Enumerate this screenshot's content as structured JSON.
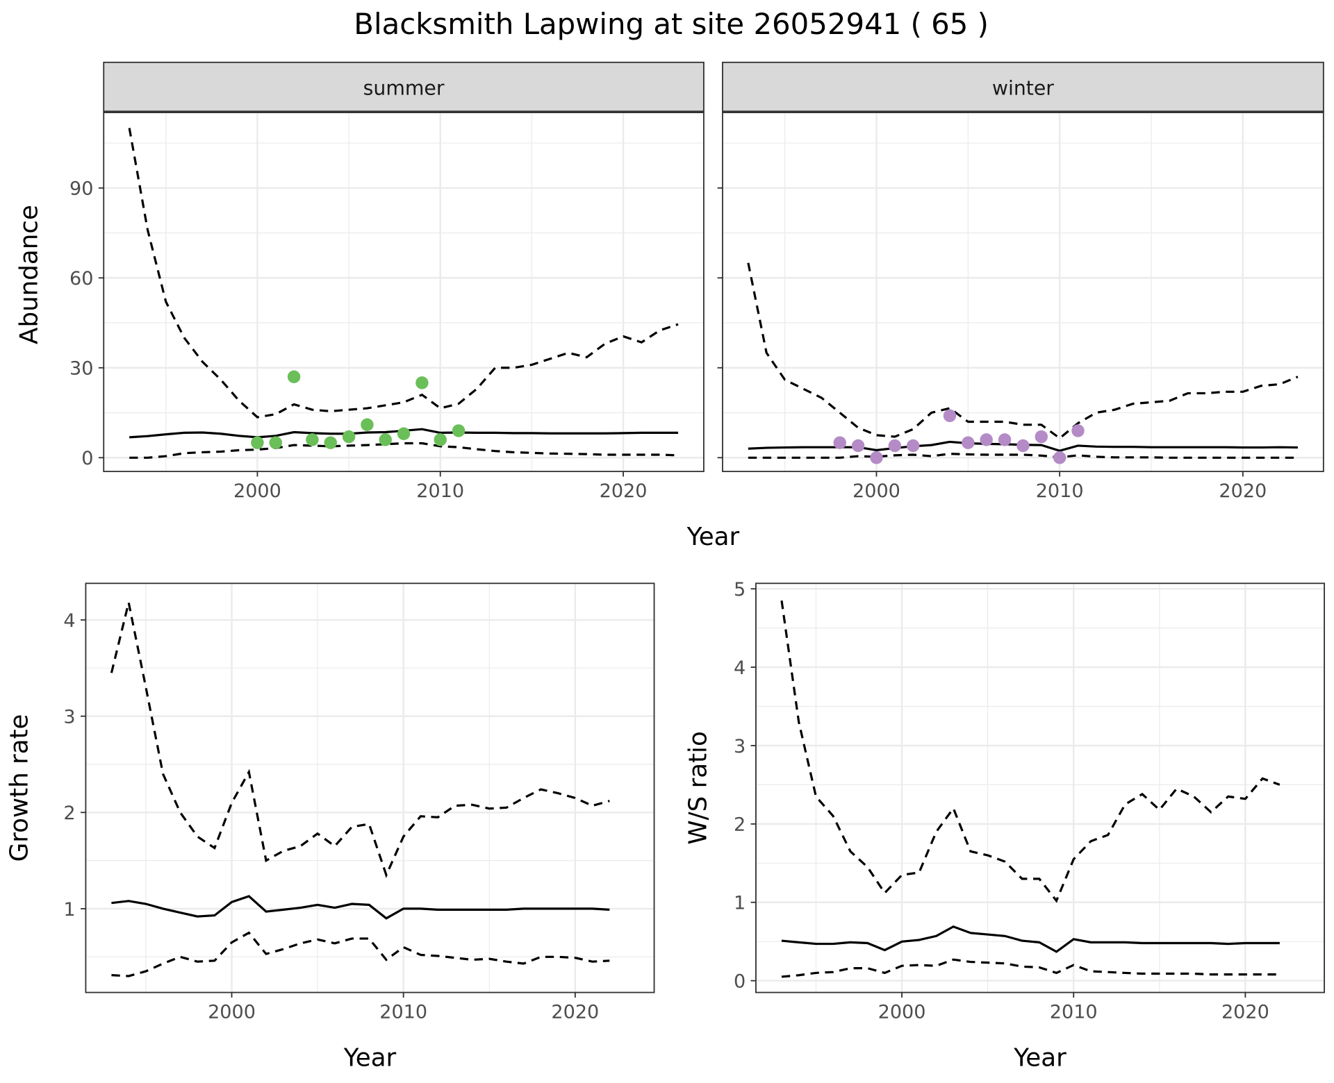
{
  "title": "Blacksmith Lapwing at site 26052941 ( 65 )",
  "chart_data": [
    {
      "type": "line",
      "facet": "summer",
      "ylabel": "Abundance",
      "xlabel": "Year",
      "xlim": [
        1991.6,
        2024.4
      ],
      "ylim": [
        -4.6,
        115.4
      ],
      "x_ticks": [
        2000,
        2010,
        2020
      ],
      "y_ticks": [
        0,
        30,
        60,
        90
      ],
      "grid": true,
      "x": [
        1993,
        1994,
        1995,
        1996,
        1997,
        1998,
        1999,
        2000,
        2001,
        2002,
        2003,
        2004,
        2005,
        2006,
        2007,
        2008,
        2009,
        2010,
        2011,
        2012,
        2013,
        2014,
        2015,
        2016,
        2017,
        2018,
        2019,
        2020,
        2021,
        2022,
        2023
      ],
      "series": [
        {
          "style": "solid",
          "values": [
            6.8,
            7.2,
            7.8,
            8.3,
            8.4,
            8.0,
            7.3,
            6.8,
            7.3,
            8.5,
            8.2,
            8.0,
            8.0,
            8.4,
            8.5,
            9.0,
            9.5,
            8.3,
            8.4,
            8.3,
            8.3,
            8.2,
            8.2,
            8.1,
            8.1,
            8.1,
            8.1,
            8.2,
            8.3,
            8.3,
            8.3
          ]
        },
        {
          "style": "dashed",
          "values": [
            110,
            76,
            52,
            40,
            32,
            26,
            19,
            13.5,
            14.5,
            17.8,
            16,
            15.5,
            16,
            16.5,
            17.5,
            18.5,
            21,
            16.5,
            18,
            23,
            30,
            30,
            31,
            33,
            35,
            33.5,
            38,
            40.5,
            38.5,
            42.5,
            44.5
          ]
        },
        {
          "style": "dashed",
          "values": [
            0,
            0,
            0.5,
            1.5,
            1.8,
            2,
            2.5,
            2.7,
            3.2,
            4.2,
            4.0,
            3.8,
            4,
            4.2,
            4.5,
            4.8,
            4.8,
            3.8,
            3.5,
            2.8,
            2.2,
            1.8,
            1.6,
            1.4,
            1.3,
            1.2,
            1.0,
            1.0,
            1.0,
            1.0,
            0.8
          ]
        }
      ],
      "points": {
        "color": "#6abf59",
        "x": [
          2000,
          2001,
          2002,
          2003,
          2004,
          2005,
          2006,
          2007,
          2008,
          2009,
          2010,
          2011
        ],
        "y": [
          5,
          5,
          27,
          6,
          5,
          7,
          11,
          6,
          8,
          25,
          6,
          9
        ]
      }
    },
    {
      "type": "line",
      "facet": "winter",
      "xlabel": "Year",
      "xlim": [
        1991.6,
        2024.4
      ],
      "ylim": [
        -4.6,
        115.4
      ],
      "x_ticks": [
        2000,
        2010,
        2020
      ],
      "y_ticks": [
        0,
        30,
        60,
        90
      ],
      "grid": true,
      "x": [
        1993,
        1994,
        1995,
        1996,
        1997,
        1998,
        1999,
        2000,
        2001,
        2002,
        2003,
        2004,
        2005,
        2006,
        2007,
        2008,
        2009,
        2010,
        2011,
        2012,
        2013,
        2014,
        2015,
        2016,
        2017,
        2018,
        2019,
        2020,
        2021,
        2022,
        2023
      ],
      "series": [
        {
          "style": "solid",
          "values": [
            3,
            3.3,
            3.4,
            3.5,
            3.5,
            3.5,
            3.5,
            2.5,
            3.2,
            3.8,
            4.2,
            5.3,
            4.8,
            4.6,
            4.5,
            4.3,
            4.2,
            2.3,
            4.0,
            3.7,
            3.6,
            3.6,
            3.5,
            3.5,
            3.5,
            3.5,
            3.5,
            3.4,
            3.4,
            3.5,
            3.4
          ]
        },
        {
          "style": "dashed",
          "values": [
            65,
            35,
            26,
            23,
            20,
            15,
            10,
            7.5,
            7,
            9.5,
            15,
            16.5,
            12,
            12,
            12,
            11,
            11,
            6.5,
            11.5,
            15,
            16,
            18,
            18.5,
            19,
            21.5,
            21.5,
            22,
            22,
            24,
            24.5,
            27
          ]
        },
        {
          "style": "dashed",
          "values": [
            0,
            0,
            0,
            0,
            0,
            0,
            0.5,
            0.3,
            0.8,
            1.0,
            0.5,
            1.3,
            1.1,
            1.0,
            1.0,
            1.0,
            0.7,
            0.1,
            0.8,
            0.3,
            0.1,
            0.1,
            0.1,
            0,
            0,
            0,
            0,
            0,
            0,
            0,
            0
          ]
        }
      ],
      "points": {
        "color": "#b48bc6",
        "x": [
          1998,
          1999,
          2000,
          2001,
          2002,
          2004,
          2005,
          2006,
          2007,
          2008,
          2009,
          2010,
          2011
        ],
        "y": [
          5,
          4,
          0,
          4,
          4,
          14,
          5,
          6,
          6,
          4,
          7,
          0,
          9
        ]
      }
    },
    {
      "type": "line",
      "ylabel": "Growth rate",
      "xlabel": "Year",
      "xlim": [
        1991.5,
        2024.6
      ],
      "ylim": [
        0.13,
        4.38
      ],
      "x_ticks": [
        2000,
        2010,
        2020
      ],
      "y_ticks": [
        1,
        2,
        3,
        4
      ],
      "grid": true,
      "x": [
        1993,
        1994,
        1995,
        1996,
        1997,
        1998,
        1999,
        2000,
        2001,
        2002,
        2003,
        2004,
        2005,
        2006,
        2007,
        2008,
        2009,
        2010,
        2011,
        2012,
        2013,
        2014,
        2015,
        2016,
        2017,
        2018,
        2019,
        2020,
        2021,
        2022
      ],
      "series": [
        {
          "style": "solid",
          "values": [
            1.06,
            1.08,
            1.05,
            1.0,
            0.96,
            0.92,
            0.93,
            1.07,
            1.13,
            0.97,
            0.99,
            1.01,
            1.04,
            1.01,
            1.05,
            1.04,
            0.9,
            1.0,
            1.0,
            0.99,
            0.99,
            0.99,
            0.99,
            0.99,
            1.0,
            1.0,
            1.0,
            1.0,
            1.0,
            0.99
          ]
        },
        {
          "style": "dashed",
          "values": [
            3.45,
            4.18,
            3.3,
            2.4,
            2.0,
            1.75,
            1.63,
            2.1,
            2.42,
            1.5,
            1.6,
            1.65,
            1.78,
            1.65,
            1.85,
            1.88,
            1.35,
            1.75,
            1.96,
            1.95,
            2.07,
            2.08,
            2.04,
            2.05,
            2.15,
            2.24,
            2.2,
            2.15,
            2.07,
            2.12
          ]
        },
        {
          "style": "dashed",
          "values": [
            0.31,
            0.3,
            0.35,
            0.43,
            0.5,
            0.45,
            0.46,
            0.65,
            0.75,
            0.53,
            0.58,
            0.64,
            0.68,
            0.64,
            0.69,
            0.69,
            0.47,
            0.6,
            0.52,
            0.51,
            0.49,
            0.47,
            0.48,
            0.45,
            0.43,
            0.5,
            0.5,
            0.49,
            0.45,
            0.46
          ]
        }
      ]
    },
    {
      "type": "line",
      "ylabel": "W/S ratio",
      "xlabel": "Year",
      "xlim": [
        1991.5,
        2024.6
      ],
      "ylim": [
        -0.15,
        5.07
      ],
      "x_ticks": [
        2000,
        2010,
        2020
      ],
      "y_ticks": [
        0,
        1,
        2,
        3,
        4,
        5
      ],
      "grid": true,
      "x": [
        1993,
        1994,
        1995,
        1996,
        1997,
        1998,
        1999,
        2000,
        2001,
        2002,
        2003,
        2004,
        2005,
        2006,
        2007,
        2008,
        2009,
        2010,
        2011,
        2012,
        2013,
        2014,
        2015,
        2016,
        2017,
        2018,
        2019,
        2020,
        2021,
        2022
      ],
      "series": [
        {
          "style": "solid",
          "values": [
            0.51,
            0.49,
            0.47,
            0.47,
            0.49,
            0.48,
            0.39,
            0.5,
            0.52,
            0.57,
            0.69,
            0.61,
            0.59,
            0.57,
            0.51,
            0.49,
            0.37,
            0.53,
            0.49,
            0.49,
            0.49,
            0.48,
            0.48,
            0.48,
            0.48,
            0.48,
            0.47,
            0.48,
            0.48,
            0.48
          ]
        },
        {
          "style": "dashed",
          "values": [
            4.85,
            3.3,
            2.35,
            2.1,
            1.65,
            1.45,
            1.12,
            1.35,
            1.38,
            1.9,
            2.2,
            1.65,
            1.6,
            1.52,
            1.3,
            1.3,
            1.02,
            1.55,
            1.78,
            1.86,
            2.25,
            2.38,
            2.18,
            2.45,
            2.35,
            2.15,
            2.35,
            2.32,
            2.58,
            2.5
          ]
        },
        {
          "style": "dashed",
          "values": [
            0.05,
            0.07,
            0.1,
            0.11,
            0.16,
            0.16,
            0.1,
            0.19,
            0.2,
            0.19,
            0.27,
            0.24,
            0.23,
            0.22,
            0.18,
            0.17,
            0.1,
            0.2,
            0.12,
            0.11,
            0.1,
            0.09,
            0.09,
            0.09,
            0.09,
            0.08,
            0.08,
            0.08,
            0.08,
            0.08
          ]
        }
      ]
    }
  ]
}
